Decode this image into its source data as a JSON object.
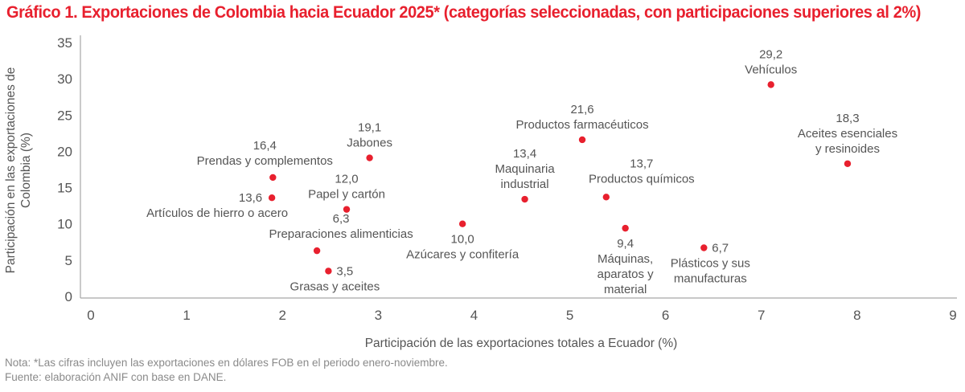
{
  "title": "Gráfico 1. Exportaciones de Colombia hacia Ecuador 2025* (categorías seleccionadas, con participaciones superiores al 2%)",
  "notes": {
    "nota": "Nota: *Las cifras incluyen las exportaciones en dólares FOB en el periodo enero-noviembre.",
    "fuente": "Fuente: elaboración ANIF con base en DANE."
  },
  "colors": {
    "title": "#e8202e",
    "point": "#e8202e",
    "axis": "#a6a6a6",
    "text": "#555555"
  },
  "chart_data": {
    "type": "scatter",
    "title": "Gráfico 1. Exportaciones de Colombia hacia Ecuador 2025* (categorías seleccionadas, con participaciones superiores al 2%)",
    "xlabel": "Participación de las exportaciones totales a Ecuador (%)",
    "ylabel": "Participación en las exportaciones de Colombia (%)",
    "ylabel_lines": [
      "Participación en las exportaciones de",
      "Colombia (%)"
    ],
    "xlim": [
      0,
      9
    ],
    "ylim": [
      0,
      35
    ],
    "xticks": [
      "0",
      "1",
      "2",
      "3",
      "4",
      "5",
      "6",
      "7",
      "8",
      "9"
    ],
    "yticks": [
      "0",
      "5",
      "10",
      "15",
      "20",
      "25",
      "30",
      "35"
    ],
    "grid": false,
    "points": [
      {
        "name": "Vehículos",
        "lines": [
          "Vehículos"
        ],
        "x": 7.1,
        "y": 29.2,
        "value_label": "29,2",
        "pos": "above"
      },
      {
        "name": "Aceites esenciales y resinoides",
        "lines": [
          "Aceites esenciales",
          "y resinoides"
        ],
        "x": 7.9,
        "y": 18.3,
        "value_label": "18,3",
        "pos": "above"
      },
      {
        "name": "Productos farmacéuticos",
        "lines": [
          "Productos farmacéuticos"
        ],
        "x": 5.13,
        "y": 21.6,
        "value_label": "21,6",
        "pos": "above"
      },
      {
        "name": "Productos químicos",
        "lines": [
          "Productos químicos"
        ],
        "x": 5.38,
        "y": 13.7,
        "value_label": "13,7",
        "pos": "above-right"
      },
      {
        "name": "Máquinas, aparatos y material",
        "lines": [
          "Máquinas,",
          "aparatos y",
          "material"
        ],
        "x": 5.58,
        "y": 9.4,
        "value_label": "9,4",
        "pos": "below"
      },
      {
        "name": "Plásticos y sus manufacturas",
        "lines": [
          "Plásticos y sus",
          "manufacturas"
        ],
        "x": 6.4,
        "y": 6.7,
        "value_label": "6,7",
        "pos": "right-below"
      },
      {
        "name": "Maquinaria industrial",
        "lines": [
          "Maquinaria",
          "industrial"
        ],
        "x": 4.53,
        "y": 13.4,
        "value_label": "13,4",
        "pos": "above"
      },
      {
        "name": "Azúcares y confitería",
        "lines": [
          "Azúcares y confitería"
        ],
        "x": 3.88,
        "y": 10.0,
        "value_label": "10,0",
        "pos": "below"
      },
      {
        "name": "Jabones",
        "lines": [
          "Jabones"
        ],
        "x": 2.91,
        "y": 19.1,
        "value_label": "19,1",
        "pos": "above"
      },
      {
        "name": "Papel y cartón",
        "lines": [
          "Papel y cartón"
        ],
        "x": 2.67,
        "y": 12.0,
        "value_label": "12,0",
        "pos": "above"
      },
      {
        "name": "Preparaciones alimenticias",
        "lines": [
          "Preparaciones alimenticias"
        ],
        "x": 2.36,
        "y": 6.3,
        "value_label": "6,3",
        "pos": "above-left"
      },
      {
        "name": "Grasas y aceites",
        "lines": [
          "Grasas y aceites"
        ],
        "x": 2.48,
        "y": 3.5,
        "value_label": "3,5",
        "pos": "right-below"
      },
      {
        "name": "Prendas y complementos",
        "lines": [
          "Prendas y complementos"
        ],
        "x": 1.9,
        "y": 16.4,
        "value_label": "16,4",
        "pos": "above-left"
      },
      {
        "name": "Artículos de hierro o acero",
        "lines": [
          "Artículos de hierro o acero"
        ],
        "x": 1.89,
        "y": 13.6,
        "value_label": "13,6",
        "pos": "left-below"
      }
    ]
  }
}
